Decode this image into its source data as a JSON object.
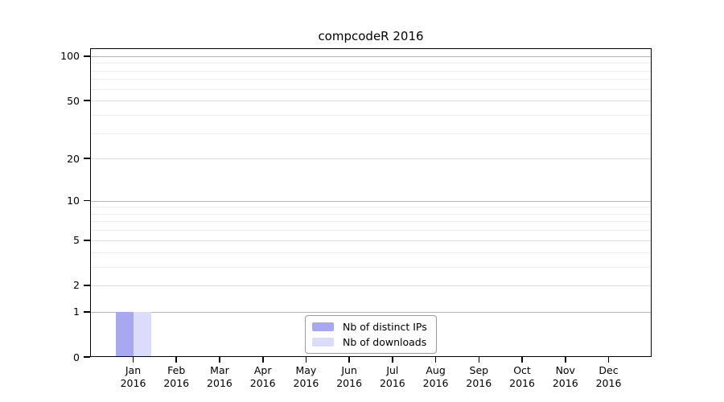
{
  "chart_data": {
    "type": "bar",
    "title": "compcodeR 2016",
    "categories": [
      "Jan",
      "Feb",
      "Mar",
      "Apr",
      "May",
      "Jun",
      "Jul",
      "Aug",
      "Sep",
      "Oct",
      "Nov",
      "Dec"
    ],
    "category_sublabel": "2016",
    "series": [
      {
        "name": "Nb of distinct IPs",
        "color": "#a8a8f0",
        "values": [
          1,
          0,
          0,
          0,
          0,
          0,
          0,
          0,
          0,
          0,
          0,
          0
        ]
      },
      {
        "name": "Nb of downloads",
        "color": "#dbdbfa",
        "values": [
          1,
          0,
          0,
          0,
          0,
          0,
          0,
          0,
          0,
          0,
          0,
          0
        ]
      }
    ],
    "xlabel": "",
    "ylabel": "",
    "y_axis": {
      "scale": "log1p",
      "ticks": [
        0,
        1,
        2,
        5,
        10,
        20,
        50,
        100
      ],
      "minor_ticks": [
        3,
        4,
        6,
        7,
        8,
        9,
        30,
        40,
        60,
        70,
        80,
        90
      ],
      "ylim": [
        0,
        113
      ]
    },
    "grid": true,
    "legend_position": "lower-center",
    "colors": {
      "grid_power10": "#b4b4b4",
      "grid_major": "#dcdcdc",
      "grid_minor": "#ededed",
      "axis": "#000000"
    }
  }
}
